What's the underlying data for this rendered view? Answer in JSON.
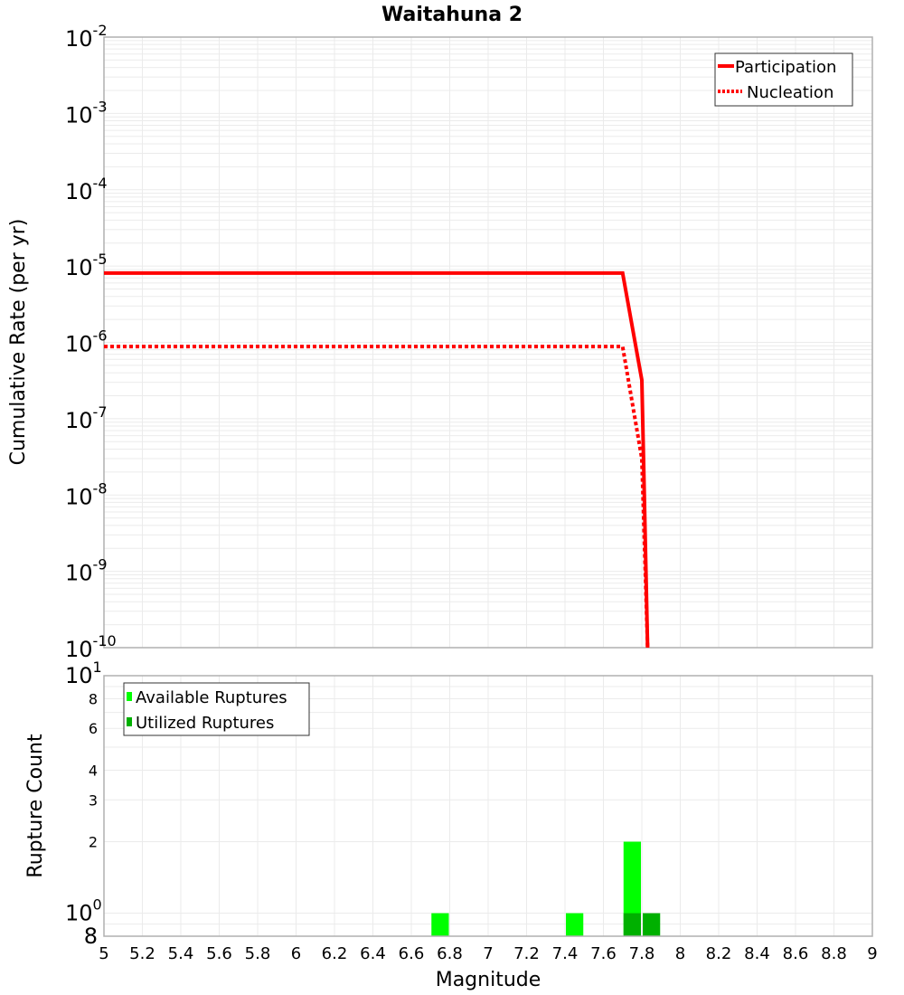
{
  "chart_data": [
    {
      "type": "line",
      "title": "Waitahuna 2",
      "xlabel": "Magnitude",
      "ylabel": "Cumulative Rate (per yr)",
      "yscale": "log",
      "xlim": [
        5,
        9
      ],
      "ylim": [
        1e-10,
        0.01
      ],
      "y_tick_labels": [
        "10^-2",
        "10^-3",
        "10^-4",
        "10^-5",
        "10^-6",
        "10^-7",
        "10^-8",
        "10^-9",
        "10^-10"
      ],
      "grid": true,
      "legend_position": "upper right",
      "series": [
        {
          "name": "Participation",
          "style": "solid",
          "color": "#ff0000",
          "x": [
            5.0,
            7.7,
            7.8,
            7.83
          ],
          "y": [
            8.1e-06,
            8.1e-06,
            3.2e-07,
            1e-10
          ]
        },
        {
          "name": "Nucleation",
          "style": "dotted",
          "color": "#ff0000",
          "x": [
            5.0,
            7.7,
            7.8,
            7.83
          ],
          "y": [
            8.8e-07,
            8.8e-07,
            3e-08,
            1e-10
          ]
        }
      ]
    },
    {
      "type": "bar",
      "xlabel": "Magnitude",
      "ylabel": "Rupture Count",
      "yscale": "log",
      "xlim": [
        5,
        9
      ],
      "ylim": [
        0.8,
        10
      ],
      "x_tick_labels": [
        "5",
        "5.2",
        "5.4",
        "5.6",
        "5.8",
        "6",
        "6.2",
        "6.4",
        "6.6",
        "6.8",
        "7",
        "7.2",
        "7.4",
        "7.6",
        "7.8",
        "8",
        "8.2",
        "8.4",
        "8.6",
        "8.8",
        "9"
      ],
      "y_tick_labels": [
        "10^1",
        "8",
        "6",
        "4",
        "3",
        "2",
        "10^0",
        "8"
      ],
      "legend_position": "upper left",
      "series": [
        {
          "name": "Available Ruptures",
          "color": "#00ff00",
          "x": [
            6.75,
            7.45,
            7.75
          ],
          "values": [
            1,
            1,
            2
          ]
        },
        {
          "name": "Utilized Ruptures",
          "color": "#00b000",
          "x": [
            7.75,
            7.85
          ],
          "values": [
            1,
            1
          ]
        }
      ]
    }
  ],
  "labels": {
    "title": "Waitahuna 2",
    "top_ylabel": "Cumulative Rate (per yr)",
    "bottom_ylabel": "Rupture Count",
    "xlabel": "Magnitude",
    "legend_top": [
      "Participation",
      "Nucleation"
    ],
    "legend_bottom": [
      "Available Ruptures",
      "Utilized Ruptures"
    ]
  }
}
